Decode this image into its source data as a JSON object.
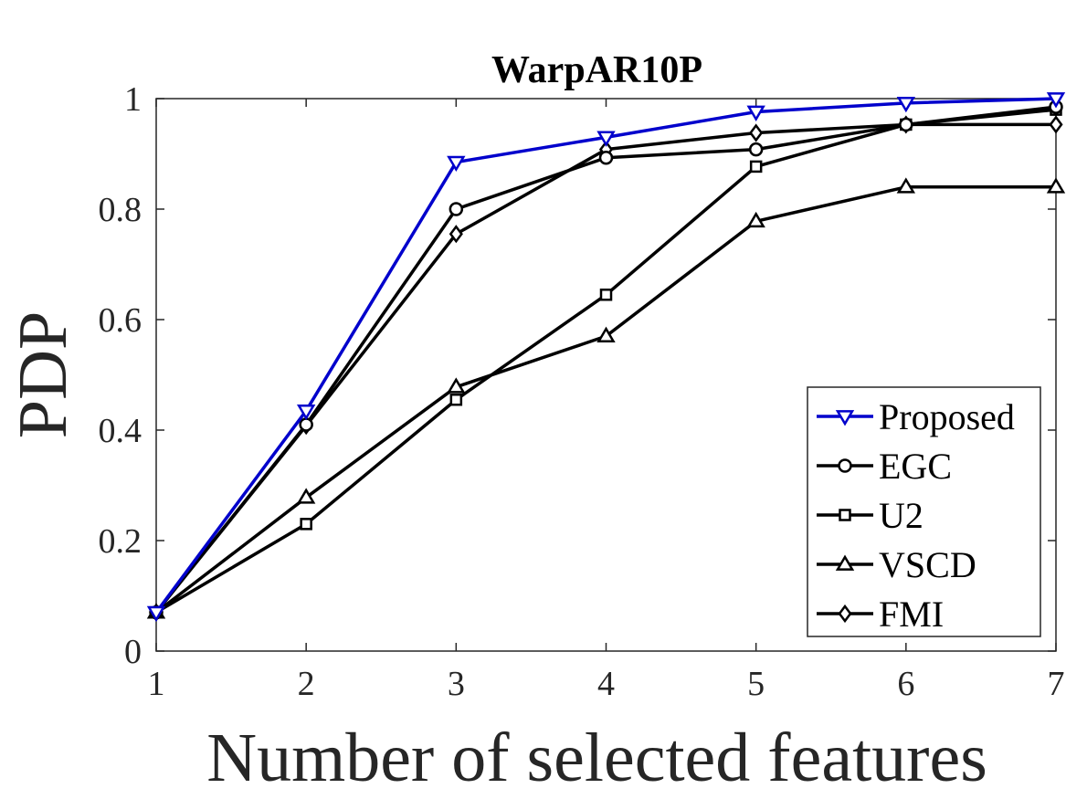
{
  "chart_data": {
    "type": "line",
    "title": "WarpAR10P",
    "xlabel": "Number of selected features",
    "ylabel": "PDP",
    "x": [
      1,
      2,
      3,
      4,
      5,
      6,
      7
    ],
    "xlim": [
      1,
      7
    ],
    "ylim": [
      0,
      1
    ],
    "xticks": [
      "1",
      "2",
      "3",
      "4",
      "5",
      "6",
      "7"
    ],
    "yticks": [
      "0",
      "0.2",
      "0.4",
      "0.6",
      "0.8",
      "1"
    ],
    "grid": false,
    "legend_position": "bottom-right",
    "series": [
      {
        "name": "Proposed",
        "marker": "triangle-down",
        "color": "#0000cc",
        "values": [
          0.07,
          0.435,
          0.885,
          0.93,
          0.976,
          0.992,
          1.0
        ]
      },
      {
        "name": "EGC",
        "marker": "circle",
        "color": "#000000",
        "values": [
          0.07,
          0.41,
          0.8,
          0.893,
          0.908,
          0.953,
          0.985
        ]
      },
      {
        "name": "U2",
        "marker": "square",
        "color": "#000000",
        "values": [
          0.07,
          0.23,
          0.455,
          0.645,
          0.877,
          0.953,
          0.98
        ]
      },
      {
        "name": "VSCD",
        "marker": "triangle-up",
        "color": "#000000",
        "values": [
          0.07,
          0.278,
          0.478,
          0.57,
          0.778,
          0.84,
          0.84
        ]
      },
      {
        "name": "FMI",
        "marker": "diamond",
        "color": "#000000",
        "values": [
          0.07,
          0.408,
          0.755,
          0.908,
          0.938,
          0.953,
          0.953
        ]
      }
    ]
  }
}
